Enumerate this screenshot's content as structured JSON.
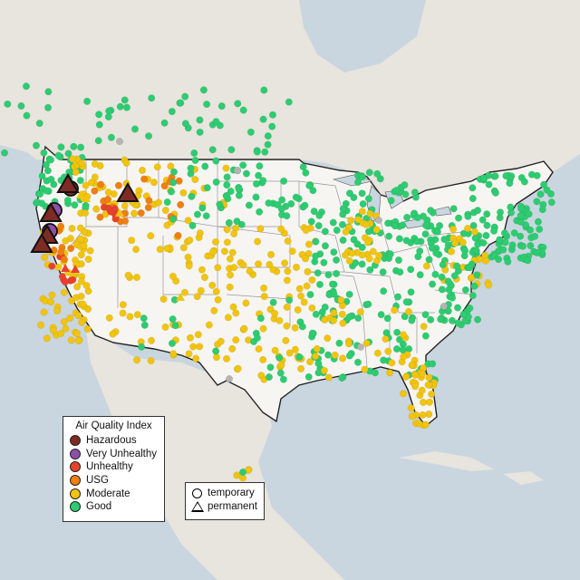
{
  "legend": {
    "title": "Air Quality Index",
    "categories": [
      {
        "label": "Hazardous",
        "color": "#7e2b24"
      },
      {
        "label": "Very Unhealthy",
        "color": "#8f4fa8"
      },
      {
        "label": "Unhealthy",
        "color": "#e8422c"
      },
      {
        "label": "USG",
        "color": "#f07f10"
      },
      {
        "label": "Moderate",
        "color": "#f1c40f"
      },
      {
        "label": "Good",
        "color": "#2ecc71"
      }
    ],
    "no_data_color": "#b5b5b5"
  },
  "monitor_legend": {
    "items": [
      {
        "label": "temporary",
        "shape": "circle"
      },
      {
        "label": "permanent",
        "shape": "triangle"
      }
    ]
  },
  "colors": {
    "ocean": "#c9d6df",
    "land": "#ece8e2",
    "usa": "#f7f5f2",
    "borders": "#222222",
    "state_lines": "#999999"
  },
  "map_style": "Conterminous US air quality monitor map with circle (temporary) and triangle (permanent) markers colored by AQI category"
}
